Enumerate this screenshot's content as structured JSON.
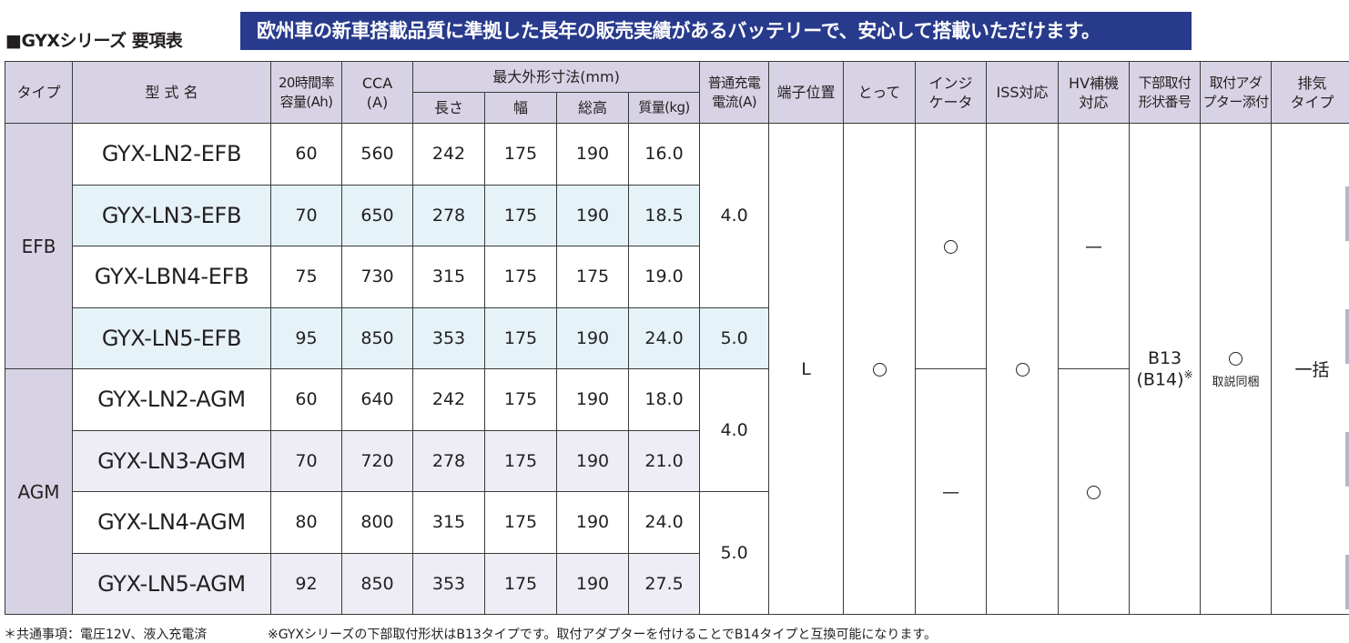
{
  "title": "■GYXシリーズ 要項表",
  "banner": "欧州車の新車搭載品質に準拠した長年の販売実績があるバッテリーで、安心して搭載いただけます。",
  "headers": {
    "type": "タイプ",
    "model": "型 式 名",
    "capacity_line1": "20時間率",
    "capacity_line2": "容量(Ah)",
    "cca_line1": "CCA",
    "cca_line2": "(A)",
    "dims_group": "最大外形寸法(mm)",
    "length": "長さ",
    "width": "幅",
    "height": "総高",
    "mass": "質量(kg)",
    "charge_line1": "普通充電",
    "charge_line2": "電流(A)",
    "terminal": "端子位置",
    "handle": "とって",
    "indicator_line1": "インジ",
    "indicator_line2": "ケータ",
    "iss": "ISS対応",
    "hv_line1": "HV補機",
    "hv_line2": "対応",
    "mount_line1": "下部取付",
    "mount_line2": "形状番号",
    "adapter_line1": "取付アダ",
    "adapter_line2": "プター添付",
    "vent_line1": "排気",
    "vent_line2": "タイプ"
  },
  "groups": {
    "efb": "EFB",
    "agm": "AGM"
  },
  "rows": [
    {
      "model": "GYX-LN2-EFB",
      "capacity": "60",
      "cca": "560",
      "length": "242",
      "width": "175",
      "height": "190",
      "mass": "16.0"
    },
    {
      "model": "GYX-LN3-EFB",
      "capacity": "70",
      "cca": "650",
      "length": "278",
      "width": "175",
      "height": "190",
      "mass": "18.5"
    },
    {
      "model": "GYX-LBN4-EFB",
      "capacity": "75",
      "cca": "730",
      "length": "315",
      "width": "175",
      "height": "175",
      "mass": "19.0"
    },
    {
      "model": "GYX-LN5-EFB",
      "capacity": "95",
      "cca": "850",
      "length": "353",
      "width": "175",
      "height": "190",
      "mass": "24.0"
    },
    {
      "model": "GYX-LN2-AGM",
      "capacity": "60",
      "cca": "640",
      "length": "242",
      "width": "175",
      "height": "190",
      "mass": "18.0"
    },
    {
      "model": "GYX-LN3-AGM",
      "capacity": "70",
      "cca": "720",
      "length": "278",
      "width": "175",
      "height": "190",
      "mass": "21.0"
    },
    {
      "model": "GYX-LN4-AGM",
      "capacity": "80",
      "cca": "800",
      "length": "315",
      "width": "175",
      "height": "190",
      "mass": "24.0"
    },
    {
      "model": "GYX-LN5-AGM",
      "capacity": "92",
      "cca": "850",
      "length": "353",
      "width": "175",
      "height": "190",
      "mass": "27.5"
    }
  ],
  "merged": {
    "charge_efb_a": "4.0",
    "charge_efb_b": "5.0",
    "charge_agm_a": "4.0",
    "charge_agm_b": "5.0",
    "terminal": "L",
    "handle": "○",
    "indicator_efb": "○",
    "indicator_agm": "—",
    "iss": "○",
    "hv_efb": "—",
    "hv_agm": "○",
    "mount_line1": "B13",
    "mount_line2": "(B14)",
    "mount_mark": "※",
    "adapter": "○",
    "adapter_note": "取説同梱",
    "vent": "一括"
  },
  "footnotes": {
    "common": "＊共通事項：電圧12V、液入充電済",
    "mount": "※GYXシリーズの下部取付形状はB13タイプです。取付アダプターを付けることでB14タイプと互換可能になります。"
  },
  "colors": {
    "banner_bg": "#283a8c",
    "header_bg": "#d7d3e4",
    "efb_alt_row": "#e5f2f8",
    "agm_alt_row": "#eeedf6"
  }
}
